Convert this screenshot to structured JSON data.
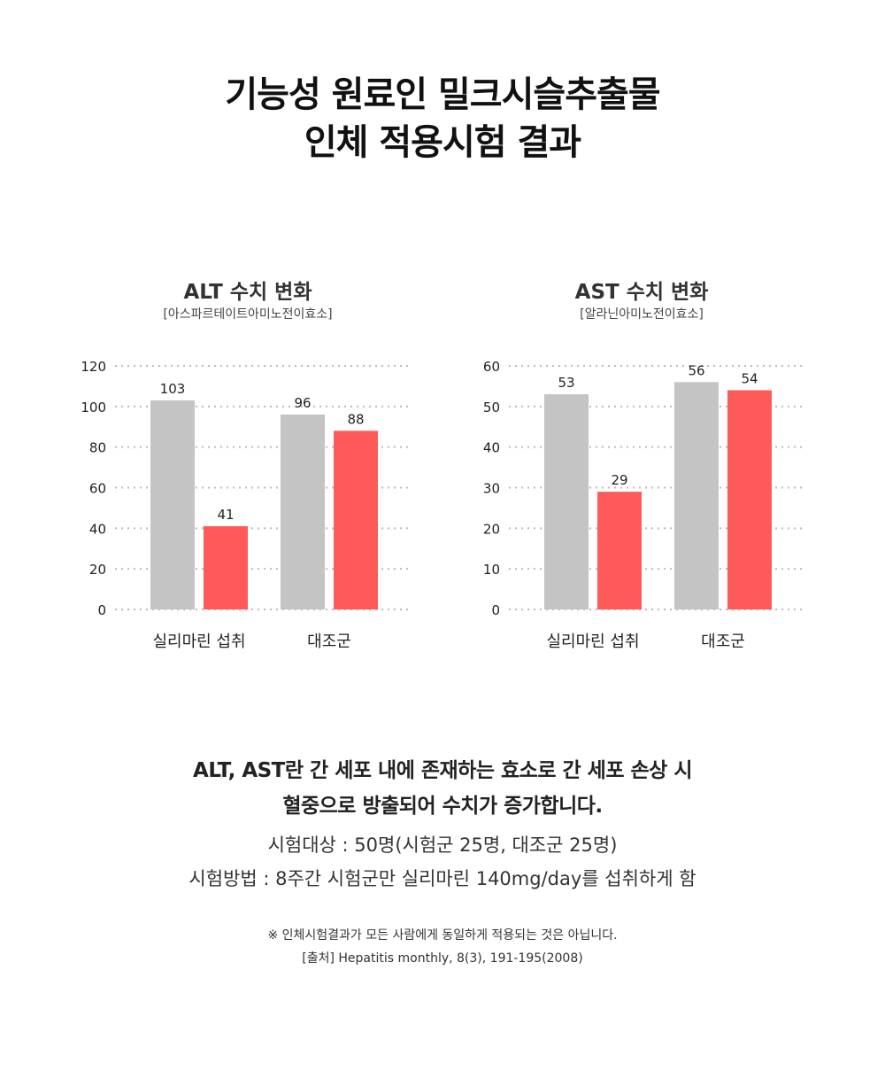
{
  "title_lines": [
    "기능성 원료인 밀크시슬추출물",
    "인체 적용시험 결과"
  ],
  "colors": {
    "treatment": "#ff5a5a",
    "control": "#c4c4c4",
    "grid": "#bbbbbb"
  },
  "chart_data": [
    {
      "type": "bar",
      "title": "ALT 수치 변화",
      "subtitle": "[아스파르테이트아미노전이효소]",
      "categories": [
        "실리마린 섭취",
        "대조군"
      ],
      "series": [
        {
          "values": [
            103,
            96
          ],
          "color": "#c4c4c4"
        },
        {
          "values": [
            41,
            88
          ],
          "color": "#ff5a5a"
        }
      ],
      "data_labels": [
        [
          "103",
          "96"
        ],
        [
          "41",
          "88"
        ]
      ],
      "yticks": [
        "0",
        "20",
        "40",
        "60",
        "80",
        "100",
        "120"
      ],
      "ylim": [
        0,
        120
      ],
      "grid": true
    },
    {
      "type": "bar",
      "title": "AST 수치 변화",
      "subtitle": "[알라닌아미노전이효소]",
      "categories": [
        "실리마린 섭취",
        "대조군"
      ],
      "series": [
        {
          "values": [
            53,
            56
          ],
          "color": "#c4c4c4"
        },
        {
          "values": [
            29,
            54
          ],
          "color": "#ff5a5a"
        }
      ],
      "data_labels": [
        [
          "53",
          "56"
        ],
        [
          "29",
          "54"
        ]
      ],
      "yticks": [
        "0",
        "10",
        "20",
        "30",
        "40",
        "50",
        "60"
      ],
      "ylim": [
        0,
        60
      ],
      "grid": true
    }
  ],
  "description": {
    "bold_lines": [
      "ALT, AST란 간 세포 내에 존재하는 효소로 간 세포 손상 시",
      "혈중으로 방출되어 수치가 증가합니다."
    ],
    "info_lines": [
      "시험대상 : 50명(시험군 25명, 대조군 25명)",
      "시험방법 : 8주간 시험군만 실리마린 140mg/day를 섭취하게 함"
    ],
    "notes": [
      "※ 인체시험결과가 모든 사람에게 동일하게 적용되는 것은 아닙니다.",
      "[출처] Hepatitis monthly, 8(3), 191-195(2008)"
    ]
  }
}
